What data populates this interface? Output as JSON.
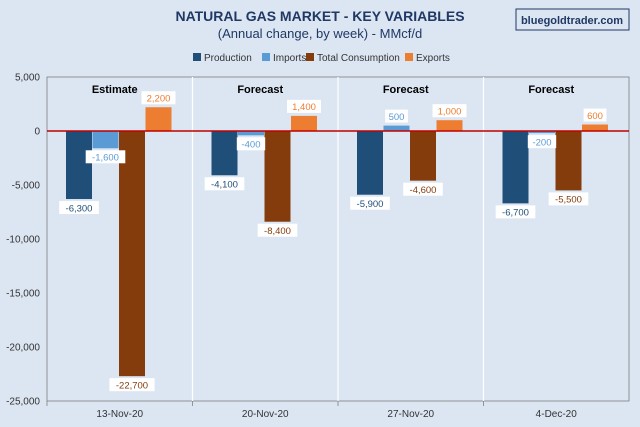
{
  "chart_data": {
    "type": "bar",
    "title": "NATURAL GAS MARKET - KEY VARIABLES",
    "subtitle": "(Annual change, by week) - MMcf/d",
    "watermark": "bluegoldtrader.com",
    "categories": [
      "13-Nov-20",
      "20-Nov-20",
      "27-Nov-20",
      "4-Dec-20"
    ],
    "group_labels": [
      "Estimate",
      "Forecast",
      "Forecast",
      "Forecast"
    ],
    "series": [
      {
        "name": "Production",
        "color": "#1f4e79",
        "values": [
          -6300,
          -4100,
          -5900,
          -6700
        ],
        "labels": [
          "-6,300",
          "-4,100",
          "-5,900",
          "-6,700"
        ]
      },
      {
        "name": "Imports",
        "color": "#5b9bd5",
        "values": [
          -1600,
          -400,
          500,
          -200
        ],
        "labels": [
          "-1,600",
          "-400",
          "500",
          "-200"
        ]
      },
      {
        "name": "Total Consumption",
        "color": "#843c0c",
        "values": [
          -22700,
          -8400,
          -4600,
          -5500
        ],
        "labels": [
          "-22,700",
          "-8,400",
          "-4,600",
          "-5,500"
        ]
      },
      {
        "name": "Exports",
        "color": "#ed7d31",
        "values": [
          2200,
          1400,
          1000,
          600
        ],
        "labels": [
          "2,200",
          "1,400",
          "1,000",
          "600"
        ]
      }
    ],
    "ylim": [
      -25000,
      5000
    ],
    "yticks": [
      5000,
      0,
      -5000,
      -10000,
      -15000,
      -20000,
      -25000
    ],
    "ytick_labels": [
      "5,000",
      "0",
      "-5,000",
      "-10,000",
      "-15,000",
      "-20,000",
      "-25,000"
    ],
    "zero_line_color": "#c00000",
    "legend_position": "top",
    "grid": false
  }
}
